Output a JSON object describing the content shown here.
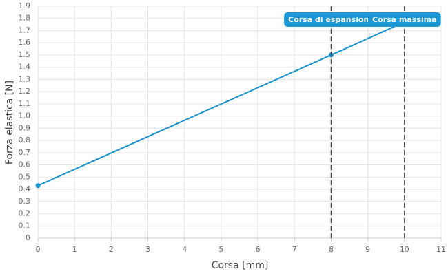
{
  "chart_data": {
    "type": "line",
    "x_label": "Corsa [mm]",
    "y_label": "Forza elastica [N]",
    "x": [
      0,
      8,
      10
    ],
    "series": [
      {
        "color": "#1590cf",
        "values": [
          0.43,
          1.5,
          1.77
        ]
      }
    ],
    "xlim": [
      0,
      11
    ],
    "xticks": [
      0,
      1,
      2,
      3,
      4,
      5,
      6,
      7,
      8,
      9,
      10,
      11
    ],
    "ylim": [
      0,
      1.9
    ],
    "yticks": [
      0,
      0.1,
      0.2,
      0.3,
      0.4,
      0.5,
      0.6,
      0.7,
      0.8,
      0.9,
      {
        "value": 1,
        "label": "1.0"
      },
      1.1,
      1.2,
      1.3,
      1.4,
      1.5,
      1.6,
      1.7,
      1.8,
      1.9
    ],
    "grid": true,
    "annotations": [
      {
        "x": 8,
        "label": "Corsa di espansione"
      },
      {
        "x": 10,
        "label": "Corsa massima"
      }
    ]
  }
}
